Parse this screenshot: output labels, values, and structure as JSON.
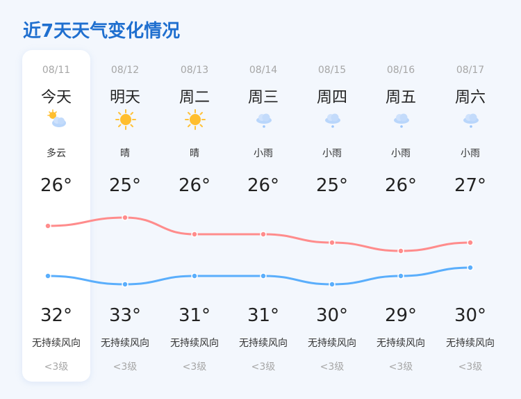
{
  "title": "近7天天气变化情况",
  "colors": {
    "title": "#1f6fcf",
    "high_line": "#ff8c8c",
    "low_line": "#5aaefc",
    "selected_card": "#ffffff"
  },
  "selected_index": 0,
  "days": [
    {
      "date": "08/11",
      "day": "今天",
      "icon": "partly-cloudy-icon",
      "condition": "多云",
      "low": "26°",
      "high": "32°",
      "wind": "无持续风向",
      "level": "<3级"
    },
    {
      "date": "08/12",
      "day": "明天",
      "icon": "sun-icon",
      "condition": "晴",
      "low": "25°",
      "high": "33°",
      "wind": "无持续风向",
      "level": "<3级"
    },
    {
      "date": "08/13",
      "day": "周二",
      "icon": "sun-icon",
      "condition": "晴",
      "low": "26°",
      "high": "31°",
      "wind": "无持续风向",
      "level": "<3级"
    },
    {
      "date": "08/14",
      "day": "周三",
      "icon": "light-rain-icon",
      "condition": "小雨",
      "low": "26°",
      "high": "31°",
      "wind": "无持续风向",
      "level": "<3级"
    },
    {
      "date": "08/15",
      "day": "周四",
      "icon": "light-rain-icon",
      "condition": "小雨",
      "low": "25°",
      "high": "30°",
      "wind": "无持续风向",
      "level": "<3级"
    },
    {
      "date": "08/16",
      "day": "周五",
      "icon": "light-rain-icon",
      "condition": "小雨",
      "low": "26°",
      "high": "29°",
      "wind": "无持续风向",
      "level": "<3级"
    },
    {
      "date": "08/17",
      "day": "周六",
      "icon": "light-rain-icon",
      "condition": "小雨",
      "low": "27°",
      "high": "30°",
      "wind": "无持续风向",
      "level": "<3级"
    }
  ],
  "chart_data": {
    "type": "line",
    "categories": [
      "08/11",
      "08/12",
      "08/13",
      "08/14",
      "08/15",
      "08/16",
      "08/17"
    ],
    "series": [
      {
        "values": [
          32,
          33,
          31,
          31,
          30,
          29,
          30
        ],
        "color": "#ff8c8c"
      },
      {
        "values": [
          26,
          25,
          26,
          26,
          25,
          26,
          27
        ],
        "color": "#5aaefc"
      }
    ]
  }
}
